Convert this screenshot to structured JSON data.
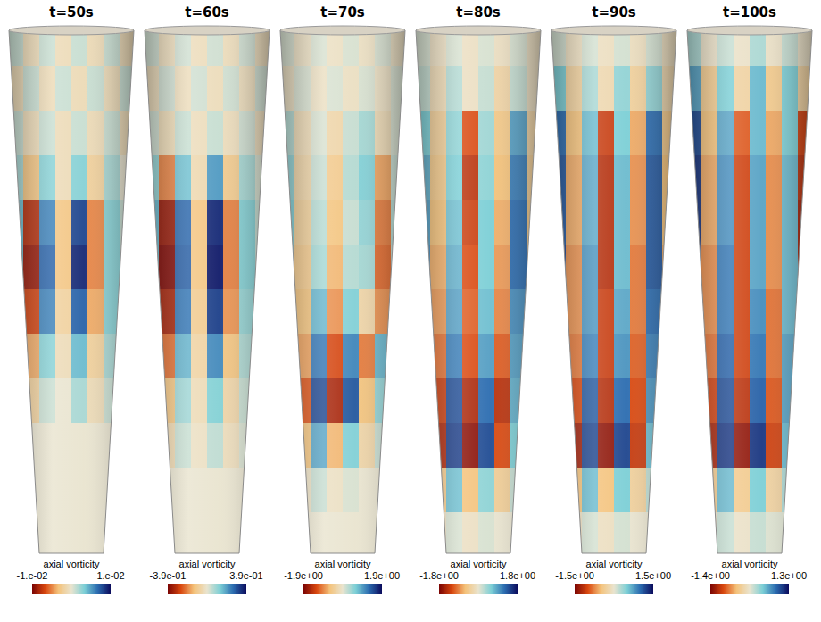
{
  "chart_data": [
    {
      "type": "heatmap",
      "title": "t=50s",
      "tick_labels": false,
      "cells": [
        [
          0.001,
          -0.001,
          0.001,
          -0.001,
          0.001,
          -0.001,
          0.001,
          -0.001
        ],
        [
          -0.001,
          0.001,
          -0.001,
          0.001,
          -0.001,
          0.001,
          -0.001,
          0.001
        ],
        [
          0.001,
          -0.001,
          0.001,
          -0.001,
          0.001,
          -0.001,
          0.001,
          -0.001
        ],
        [
          0.002,
          -0.003,
          0.003,
          -0.001,
          0.003,
          -0.002,
          0.002,
          0
        ],
        [
          0.004,
          -0.008,
          0.006,
          -0.003,
          0.008,
          -0.005,
          0.003,
          0.001
        ],
        [
          0.004,
          -0.009,
          0.007,
          -0.003,
          0.009,
          -0.005,
          0.003,
          0.001
        ],
        [
          0.003,
          -0.007,
          0.006,
          -0.002,
          0.007,
          -0.004,
          0.003,
          0.001
        ],
        [
          0.002,
          -0.004,
          0.003,
          -0.001,
          0.004,
          -0.002,
          0.002,
          0
        ],
        [
          0.001,
          -0.002,
          0.001,
          0,
          0.002,
          -0.001,
          0.001,
          0
        ],
        [
          0,
          0,
          0,
          0,
          0,
          0,
          0,
          0
        ],
        [
          0,
          0,
          0,
          0,
          0,
          0,
          0,
          0
        ],
        [
          0,
          0,
          0,
          0,
          0,
          0,
          0,
          0
        ]
      ],
      "colorbar": {
        "label": "axial vorticity",
        "range": [
          -0.01,
          0.01
        ],
        "ticks": [
          {
            "value": -0.01,
            "label": "-1.e-02"
          },
          {
            "value": 0.01,
            "label": "1.e-02"
          }
        ]
      }
    },
    {
      "type": "heatmap",
      "title": "t=60s",
      "tick_labels": false,
      "cells": [
        [
          0.03,
          -0.03,
          0.03,
          -0.03,
          0.03,
          -0.03,
          0.03,
          -0.03
        ],
        [
          -0.03,
          0.03,
          -0.03,
          0.03,
          -0.03,
          0.03,
          -0.03,
          0.03
        ],
        [
          0.03,
          -0.04,
          0.04,
          -0.03,
          0.04,
          -0.03,
          0.03,
          -0.03
        ],
        [
          0.1,
          -0.2,
          0.15,
          -0.05,
          0.2,
          -0.1,
          0.08,
          0.02
        ],
        [
          0.16,
          -0.35,
          0.27,
          -0.12,
          0.35,
          -0.2,
          0.12,
          0.04
        ],
        [
          0.16,
          -0.38,
          0.28,
          -0.12,
          0.37,
          -0.2,
          0.12,
          0.04
        ],
        [
          0.14,
          -0.33,
          0.25,
          -0.1,
          0.32,
          -0.18,
          0.1,
          0.03
        ],
        [
          0.1,
          -0.22,
          0.17,
          -0.07,
          0.22,
          -0.12,
          0.07,
          0.02
        ],
        [
          0.05,
          -0.12,
          0.09,
          -0.04,
          0.12,
          -0.06,
          0.04,
          0.01
        ],
        [
          0.02,
          -0.05,
          0.04,
          -0.02,
          0.05,
          -0.03,
          0.02,
          0
        ],
        [
          0,
          0,
          0,
          0,
          0,
          0,
          0,
          0
        ],
        [
          0,
          0,
          0,
          0,
          0,
          0,
          0,
          0
        ]
      ],
      "colorbar": {
        "label": "axial vorticity",
        "range": [
          -0.39,
          0.39
        ],
        "ticks": [
          {
            "value": -0.39,
            "label": "-3.9e-01"
          },
          {
            "value": 0.39,
            "label": "3.9e-01"
          }
        ]
      }
    },
    {
      "type": "heatmap",
      "title": "t=70s",
      "tick_labels": false,
      "cells": [
        [
          0.1,
          -0.1,
          0.1,
          -0.1,
          0.1,
          -0.1,
          0.1,
          -0.1
        ],
        [
          -0.1,
          0.1,
          -0.1,
          0.1,
          -0.1,
          0.1,
          -0.1,
          0.1
        ],
        [
          0.3,
          -0.2,
          0.1,
          -0.3,
          0.2,
          0.4,
          -0.2,
          0.1
        ],
        [
          0.5,
          -0.3,
          0.2,
          -0.5,
          0.3,
          0.6,
          -0.8,
          0.2
        ],
        [
          0.6,
          -0.4,
          0.3,
          -0.6,
          0.2,
          0.5,
          -1.0,
          0.3
        ],
        [
          0.7,
          -0.5,
          0.4,
          -0.7,
          0.3,
          0.4,
          -1.1,
          0.2
        ],
        [
          0.9,
          -0.6,
          0.8,
          -0.9,
          0.6,
          -0.3,
          -0.9,
          0.3
        ],
        [
          1.4,
          -0.8,
          1.2,
          -1.3,
          1.1,
          -1.0,
          0.8,
          0.2
        ],
        [
          1.8,
          -1.2,
          1.5,
          -1.6,
          1.4,
          -0.6,
          0.5,
          0.1
        ],
        [
          0.8,
          -0.6,
          0.9,
          -0.7,
          0.6,
          -0.3,
          0.2,
          0
        ],
        [
          0.2,
          -0.1,
          0.2,
          -0.1,
          0.1,
          0,
          0,
          0
        ],
        [
          0,
          0,
          0,
          0,
          0,
          0,
          0,
          0
        ]
      ],
      "colorbar": {
        "label": "axial vorticity",
        "range": [
          -1.9,
          1.9
        ],
        "ticks": [
          {
            "value": -1.9,
            "label": "-1.9e+00"
          },
          {
            "value": 1.9,
            "label": "1.9e+00"
          }
        ]
      }
    },
    {
      "type": "heatmap",
      "title": "t=80s",
      "tick_labels": false,
      "cells": [
        [
          0.1,
          -0.1,
          0.1,
          -0.1,
          0.1,
          -0.1,
          0.1,
          -0.1
        ],
        [
          0.2,
          -0.2,
          0.3,
          -0.1,
          0.2,
          -0.3,
          0.2,
          -0.1
        ],
        [
          0.6,
          -0.4,
          0.5,
          -1.2,
          0.4,
          -0.5,
          0.9,
          -0.3
        ],
        [
          0.8,
          -0.5,
          0.6,
          -1.4,
          0.5,
          -0.6,
          1.1,
          -0.4
        ],
        [
          0.9,
          -0.6,
          0.7,
          -1.3,
          0.6,
          -0.7,
          1.2,
          -0.5
        ],
        [
          1.0,
          -0.7,
          0.8,
          -1.2,
          0.6,
          -0.8,
          1.2,
          -0.6
        ],
        [
          1.1,
          -0.8,
          0.9,
          -1.1,
          0.7,
          -0.9,
          1.0,
          -0.7
        ],
        [
          1.3,
          -1.0,
          1.1,
          -1.2,
          0.9,
          -1.1,
          0.9,
          -0.8
        ],
        [
          1.6,
          -1.3,
          1.4,
          -1.5,
          1.2,
          -1.4,
          0.8,
          -0.6
        ],
        [
          1.7,
          -1.5,
          1.5,
          -1.7,
          1.4,
          -1.2,
          0.6,
          -0.3
        ],
        [
          0.6,
          -0.5,
          0.7,
          -0.6,
          0.5,
          -0.4,
          0.2,
          0
        ],
        [
          0.1,
          -0.1,
          0.1,
          -0.1,
          0.1,
          0,
          0,
          0
        ]
      ],
      "colorbar": {
        "label": "axial vorticity",
        "range": [
          -1.8,
          1.8
        ],
        "ticks": [
          {
            "value": -1.8,
            "label": "-1.8e+00"
          },
          {
            "value": 1.8,
            "label": "1.8e+00"
          }
        ]
      }
    },
    {
      "type": "heatmap",
      "title": "t=90s",
      "tick_labels": false,
      "cells": [
        [
          0.1,
          -0.1,
          0.1,
          -0.1,
          0.1,
          -0.1,
          0.1,
          -0.1
        ],
        [
          0.5,
          -0.3,
          0.3,
          -0.2,
          0.4,
          -0.3,
          0.4,
          -0.2
        ],
        [
          1.0,
          -0.5,
          0.6,
          -1.1,
          0.5,
          -0.6,
          1.0,
          -0.4
        ],
        [
          1.1,
          -0.6,
          0.7,
          -1.2,
          0.6,
          -0.7,
          1.1,
          -0.5
        ],
        [
          1.1,
          -0.6,
          0.7,
          -1.2,
          0.6,
          -0.7,
          1.1,
          -0.5
        ],
        [
          1.2,
          -0.7,
          0.8,
          -1.2,
          0.6,
          -0.8,
          1.1,
          -0.6
        ],
        [
          1.2,
          -0.7,
          0.8,
          -1.1,
          0.7,
          -0.8,
          1.0,
          -0.6
        ],
        [
          1.2,
          -0.8,
          0.9,
          -1.1,
          0.8,
          -0.9,
          0.9,
          -0.6
        ],
        [
          1.3,
          -1.0,
          1.1,
          -1.2,
          1.0,
          -1.0,
          0.8,
          -0.5
        ],
        [
          1.4,
          -1.3,
          1.2,
          -1.4,
          1.2,
          -1.1,
          0.6,
          -0.3
        ],
        [
          0.6,
          -0.5,
          0.6,
          -0.5,
          0.5,
          -0.3,
          0.2,
          0
        ],
        [
          0.1,
          -0.1,
          0.1,
          -0.1,
          0.1,
          0,
          0,
          0
        ]
      ],
      "colorbar": {
        "label": "axial vorticity",
        "range": [
          -1.5,
          1.5
        ],
        "ticks": [
          {
            "value": -1.5,
            "label": "-1.5e+00"
          },
          {
            "value": 1.5,
            "label": "1.5e+00"
          }
        ]
      }
    },
    {
      "type": "heatmap",
      "title": "t=100s",
      "tick_labels": false,
      "cells": [
        [
          0.2,
          -0.1,
          0.1,
          -0.1,
          0.2,
          -0.1,
          0.1,
          -0.1
        ],
        [
          0.6,
          -0.4,
          0.4,
          -0.3,
          0.5,
          -0.4,
          0.4,
          -0.3
        ],
        [
          1.0,
          -0.5,
          0.6,
          -0.9,
          0.5,
          -0.6,
          0.4,
          -1.0
        ],
        [
          1.1,
          -0.6,
          0.7,
          -1.0,
          0.6,
          -0.7,
          0.5,
          -1.1
        ],
        [
          1.1,
          -0.6,
          0.7,
          -1.0,
          0.6,
          -0.7,
          0.5,
          -1.2
        ],
        [
          1.1,
          -0.7,
          0.8,
          -1.0,
          0.6,
          -0.7,
          0.5,
          -1.2
        ],
        [
          1.1,
          -0.7,
          0.8,
          -1.0,
          0.7,
          -0.8,
          0.5,
          -1.1
        ],
        [
          1.1,
          -0.8,
          0.9,
          -1.0,
          0.8,
          -0.8,
          0.6,
          -1.0
        ],
        [
          1.2,
          -1.0,
          1.0,
          -1.1,
          0.9,
          -0.9,
          0.6,
          -0.8
        ],
        [
          1.3,
          -1.2,
          1.1,
          -1.3,
          1.1,
          -1.0,
          0.5,
          -0.4
        ],
        [
          0.5,
          -0.4,
          0.5,
          -0.4,
          0.4,
          -0.3,
          0.2,
          0
        ],
        [
          0.1,
          -0.1,
          0.1,
          -0.1,
          0.1,
          0,
          0,
          0
        ]
      ],
      "colorbar": {
        "label": "axial vorticity",
        "range": [
          -1.4,
          1.3
        ],
        "ticks": [
          {
            "value": -1.4,
            "label": "-1.4e+00"
          },
          {
            "value": 1.3,
            "label": "1.3e+00"
          }
        ]
      }
    }
  ]
}
